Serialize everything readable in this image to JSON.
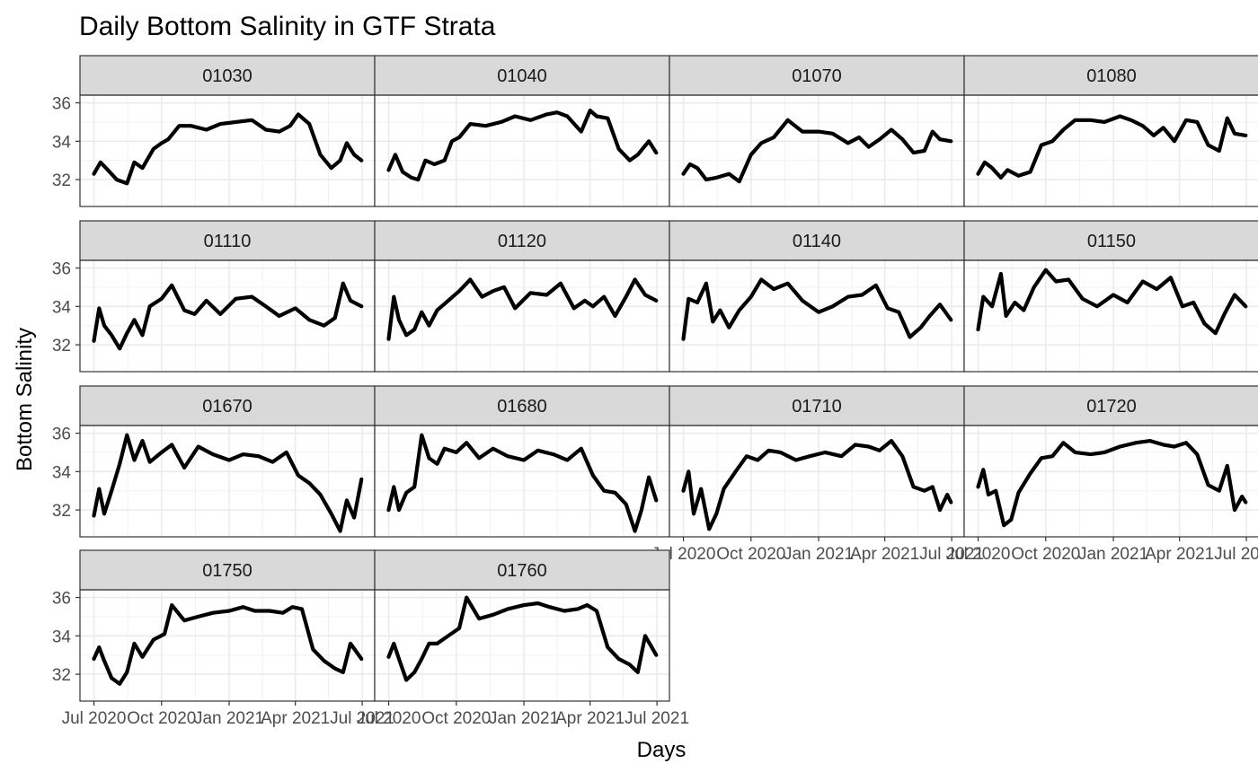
{
  "chart_data": {
    "type": "line",
    "title": "Daily Bottom Salinity in GTF Strata",
    "xlabel": "Days",
    "ylabel": "Bottom Salinity",
    "x_tick_labels": [
      "Jul 2020",
      "Oct 2020",
      "Jan 2021",
      "Apr 2021",
      "Jul 2021"
    ],
    "y_ticks": [
      32,
      34,
      36
    ],
    "ylim": [
      30.6,
      36.4
    ],
    "xlim": [
      "2020-06-12",
      "2021-07-18"
    ],
    "grid": true,
    "facet_strip_color": "#d9d9d9",
    "line_color": "#000000",
    "series": [
      {
        "name": "01030",
        "x": [
          "2020-07-01",
          "2020-07-10",
          "2020-07-20",
          "2020-08-01",
          "2020-08-15",
          "2020-08-25",
          "2020-09-05",
          "2020-09-20",
          "2020-10-01",
          "2020-10-10",
          "2020-10-25",
          "2020-11-10",
          "2020-12-01",
          "2020-12-20",
          "2021-01-10",
          "2021-02-01",
          "2021-02-20",
          "2021-03-10",
          "2021-03-25",
          "2021-04-05",
          "2021-04-20",
          "2021-05-05",
          "2021-05-20",
          "2021-06-01",
          "2021-06-10",
          "2021-06-20",
          "2021-06-30"
        ],
        "y": [
          32.3,
          32.9,
          32.5,
          32.0,
          31.8,
          32.9,
          32.6,
          33.6,
          33.9,
          34.1,
          34.8,
          34.8,
          34.6,
          34.9,
          35.0,
          35.1,
          34.6,
          34.5,
          34.8,
          35.4,
          34.9,
          33.3,
          32.6,
          33.0,
          33.9,
          33.3,
          33.0
        ]
      },
      {
        "name": "01040",
        "x": [
          "2020-07-01",
          "2020-07-10",
          "2020-07-20",
          "2020-08-01",
          "2020-08-10",
          "2020-08-20",
          "2020-09-01",
          "2020-09-15",
          "2020-09-25",
          "2020-10-05",
          "2020-10-20",
          "2020-11-10",
          "2020-12-01",
          "2020-12-20",
          "2021-01-10",
          "2021-02-01",
          "2021-02-15",
          "2021-03-01",
          "2021-03-20",
          "2021-04-01",
          "2021-04-10",
          "2021-04-25",
          "2021-05-10",
          "2021-05-25",
          "2021-06-05",
          "2021-06-20",
          "2021-06-30"
        ],
        "y": [
          32.5,
          33.3,
          32.4,
          32.1,
          32.0,
          33.0,
          32.8,
          33.0,
          34.0,
          34.2,
          34.9,
          34.8,
          35.0,
          35.3,
          35.1,
          35.4,
          35.5,
          35.3,
          34.5,
          35.6,
          35.3,
          35.2,
          33.6,
          33.0,
          33.3,
          34.0,
          33.4
        ]
      },
      {
        "name": "01070",
        "x": [
          "2020-07-01",
          "2020-07-10",
          "2020-07-20",
          "2020-08-01",
          "2020-08-15",
          "2020-09-01",
          "2020-09-15",
          "2020-10-01",
          "2020-10-15",
          "2020-11-01",
          "2020-11-20",
          "2020-12-10",
          "2021-01-01",
          "2021-01-20",
          "2021-02-10",
          "2021-02-25",
          "2021-03-10",
          "2021-03-25",
          "2021-04-10",
          "2021-04-25",
          "2021-05-10",
          "2021-05-25",
          "2021-06-05",
          "2021-06-15",
          "2021-06-30"
        ],
        "y": [
          32.3,
          32.8,
          32.6,
          32.0,
          32.1,
          32.3,
          31.9,
          33.3,
          33.9,
          34.2,
          35.1,
          34.5,
          34.5,
          34.4,
          33.9,
          34.2,
          33.7,
          34.1,
          34.6,
          34.1,
          33.4,
          33.5,
          34.5,
          34.1,
          34.0
        ]
      },
      {
        "name": "01080",
        "x": [
          "2020-07-01",
          "2020-07-10",
          "2020-07-20",
          "2020-08-01",
          "2020-08-10",
          "2020-08-25",
          "2020-09-10",
          "2020-09-25",
          "2020-10-10",
          "2020-10-25",
          "2020-11-10",
          "2020-12-01",
          "2020-12-20",
          "2021-01-10",
          "2021-01-25",
          "2021-02-10",
          "2021-02-25",
          "2021-03-10",
          "2021-03-25",
          "2021-04-10",
          "2021-04-25",
          "2021-05-10",
          "2021-05-25",
          "2021-06-05",
          "2021-06-15",
          "2021-06-30"
        ],
        "y": [
          32.3,
          32.9,
          32.6,
          32.1,
          32.5,
          32.2,
          32.4,
          33.8,
          34.0,
          34.6,
          35.1,
          35.1,
          35.0,
          35.3,
          35.1,
          34.8,
          34.3,
          34.7,
          34.0,
          35.1,
          35.0,
          33.8,
          33.5,
          35.2,
          34.4,
          34.3
        ]
      },
      {
        "name": "01110",
        "x": [
          "2020-07-01",
          "2020-07-08",
          "2020-07-15",
          "2020-07-25",
          "2020-08-05",
          "2020-08-15",
          "2020-08-25",
          "2020-09-05",
          "2020-09-15",
          "2020-10-01",
          "2020-10-15",
          "2020-11-01",
          "2020-11-15",
          "2020-12-01",
          "2020-12-20",
          "2021-01-10",
          "2021-02-01",
          "2021-02-20",
          "2021-03-10",
          "2021-04-01",
          "2021-04-20",
          "2021-05-10",
          "2021-05-25",
          "2021-06-05",
          "2021-06-15",
          "2021-06-30"
        ],
        "y": [
          32.2,
          33.9,
          33.0,
          32.5,
          31.8,
          32.6,
          33.3,
          32.5,
          34.0,
          34.4,
          35.1,
          33.8,
          33.6,
          34.3,
          33.6,
          34.4,
          34.5,
          34.0,
          33.5,
          33.9,
          33.3,
          33.0,
          33.4,
          35.2,
          34.3,
          34.0
        ]
      },
      {
        "name": "01120",
        "x": [
          "2020-07-01",
          "2020-07-08",
          "2020-07-15",
          "2020-07-25",
          "2020-08-05",
          "2020-08-15",
          "2020-08-25",
          "2020-09-05",
          "2020-09-20",
          "2020-10-05",
          "2020-10-20",
          "2020-11-05",
          "2020-11-20",
          "2020-12-05",
          "2020-12-20",
          "2021-01-10",
          "2021-02-01",
          "2021-02-20",
          "2021-03-10",
          "2021-03-25",
          "2021-04-05",
          "2021-04-20",
          "2021-05-05",
          "2021-05-20",
          "2021-06-01",
          "2021-06-15",
          "2021-06-30"
        ],
        "y": [
          32.3,
          34.5,
          33.3,
          32.5,
          32.8,
          33.7,
          33.0,
          33.8,
          34.3,
          34.8,
          35.4,
          34.5,
          34.8,
          35.0,
          33.9,
          34.7,
          34.6,
          35.2,
          33.9,
          34.3,
          34.0,
          34.5,
          33.5,
          34.5,
          35.4,
          34.6,
          34.3
        ]
      },
      {
        "name": "01140",
        "x": [
          "2020-07-01",
          "2020-07-08",
          "2020-07-20",
          "2020-08-01",
          "2020-08-10",
          "2020-08-20",
          "2020-09-01",
          "2020-09-15",
          "2020-10-01",
          "2020-10-15",
          "2020-11-01",
          "2020-11-20",
          "2020-12-10",
          "2021-01-01",
          "2021-01-20",
          "2021-02-10",
          "2021-03-01",
          "2021-03-20",
          "2021-04-05",
          "2021-04-20",
          "2021-05-05",
          "2021-05-20",
          "2021-06-01",
          "2021-06-15",
          "2021-06-30"
        ],
        "y": [
          32.3,
          34.4,
          34.2,
          35.2,
          33.2,
          33.8,
          32.9,
          33.8,
          34.5,
          35.4,
          34.9,
          35.2,
          34.3,
          33.7,
          34.0,
          34.5,
          34.6,
          35.1,
          33.9,
          33.7,
          32.4,
          32.9,
          33.5,
          34.1,
          33.3
        ]
      },
      {
        "name": "01150",
        "x": [
          "2020-07-01",
          "2020-07-08",
          "2020-07-20",
          "2020-08-01",
          "2020-08-08",
          "2020-08-20",
          "2020-09-01",
          "2020-09-15",
          "2020-10-01",
          "2020-10-15",
          "2020-11-01",
          "2020-11-20",
          "2020-12-10",
          "2021-01-01",
          "2021-01-20",
          "2021-02-10",
          "2021-03-01",
          "2021-03-20",
          "2021-04-05",
          "2021-04-20",
          "2021-05-05",
          "2021-05-20",
          "2021-06-01",
          "2021-06-15",
          "2021-06-30"
        ],
        "y": [
          32.8,
          34.5,
          34.0,
          35.7,
          33.5,
          34.2,
          33.8,
          35.0,
          35.9,
          35.3,
          35.4,
          34.4,
          34.0,
          34.6,
          34.2,
          35.3,
          34.9,
          35.5,
          34.0,
          34.2,
          33.1,
          32.6,
          33.6,
          34.6,
          34.0
        ]
      },
      {
        "name": "01670",
        "x": [
          "2020-07-01",
          "2020-07-08",
          "2020-07-15",
          "2020-07-25",
          "2020-08-05",
          "2020-08-15",
          "2020-08-25",
          "2020-09-05",
          "2020-09-15",
          "2020-10-01",
          "2020-10-15",
          "2020-11-01",
          "2020-11-20",
          "2020-12-10",
          "2021-01-01",
          "2021-01-20",
          "2021-02-10",
          "2021-03-01",
          "2021-03-20",
          "2021-04-05",
          "2021-04-20",
          "2021-05-05",
          "2021-05-20",
          "2021-06-01",
          "2021-06-10",
          "2021-06-20",
          "2021-06-30"
        ],
        "y": [
          31.7,
          33.1,
          31.8,
          33.0,
          34.4,
          35.9,
          34.6,
          35.6,
          34.5,
          35.0,
          35.4,
          34.2,
          35.3,
          34.9,
          34.6,
          34.9,
          34.8,
          34.5,
          35.0,
          33.8,
          33.4,
          32.8,
          31.8,
          30.9,
          32.5,
          31.6,
          33.6
        ]
      },
      {
        "name": "01680",
        "x": [
          "2020-07-01",
          "2020-07-08",
          "2020-07-15",
          "2020-07-25",
          "2020-08-05",
          "2020-08-15",
          "2020-08-25",
          "2020-09-05",
          "2020-09-15",
          "2020-10-01",
          "2020-10-15",
          "2020-11-01",
          "2020-11-20",
          "2020-12-10",
          "2021-01-01",
          "2021-01-20",
          "2021-02-10",
          "2021-03-01",
          "2021-03-20",
          "2021-04-05",
          "2021-04-20",
          "2021-05-05",
          "2021-05-20",
          "2021-06-01",
          "2021-06-10",
          "2021-06-20",
          "2021-06-30"
        ],
        "y": [
          32.0,
          33.2,
          32.0,
          32.9,
          33.2,
          35.9,
          34.7,
          34.4,
          35.2,
          35.0,
          35.5,
          34.7,
          35.2,
          34.8,
          34.6,
          35.1,
          34.9,
          34.6,
          35.2,
          33.8,
          33.0,
          32.9,
          32.3,
          30.9,
          32.0,
          33.7,
          32.5
        ]
      },
      {
        "name": "01710",
        "x": [
          "2020-07-01",
          "2020-07-08",
          "2020-07-15",
          "2020-07-25",
          "2020-08-05",
          "2020-08-15",
          "2020-08-25",
          "2020-09-10",
          "2020-09-25",
          "2020-10-10",
          "2020-10-25",
          "2020-11-10",
          "2020-12-01",
          "2020-12-20",
          "2021-01-10",
          "2021-02-01",
          "2021-02-20",
          "2021-03-10",
          "2021-03-25",
          "2021-04-10",
          "2021-04-25",
          "2021-05-10",
          "2021-05-25",
          "2021-06-05",
          "2021-06-15",
          "2021-06-25",
          "2021-06-30"
        ],
        "y": [
          33.0,
          34.0,
          31.8,
          33.1,
          31.0,
          31.8,
          33.1,
          34.0,
          34.8,
          34.6,
          35.1,
          35.0,
          34.6,
          34.8,
          35.0,
          34.8,
          35.4,
          35.3,
          35.1,
          35.6,
          34.8,
          33.2,
          33.0,
          33.2,
          32.0,
          32.8,
          32.4
        ]
      },
      {
        "name": "01720",
        "x": [
          "2020-07-01",
          "2020-07-08",
          "2020-07-15",
          "2020-07-25",
          "2020-08-05",
          "2020-08-15",
          "2020-08-25",
          "2020-09-10",
          "2020-09-25",
          "2020-10-10",
          "2020-10-25",
          "2020-11-10",
          "2020-12-01",
          "2020-12-20",
          "2021-01-10",
          "2021-02-01",
          "2021-02-20",
          "2021-03-10",
          "2021-03-25",
          "2021-04-10",
          "2021-04-25",
          "2021-05-10",
          "2021-05-25",
          "2021-06-05",
          "2021-06-15",
          "2021-06-25",
          "2021-06-30"
        ],
        "y": [
          33.2,
          34.1,
          32.8,
          33.0,
          31.2,
          31.5,
          32.9,
          33.9,
          34.7,
          34.8,
          35.5,
          35.0,
          34.9,
          35.0,
          35.3,
          35.5,
          35.6,
          35.4,
          35.3,
          35.5,
          34.9,
          33.3,
          33.0,
          34.3,
          32.0,
          32.7,
          32.4
        ]
      },
      {
        "name": "01750",
        "x": [
          "2020-07-01",
          "2020-07-08",
          "2020-07-15",
          "2020-07-25",
          "2020-08-05",
          "2020-08-15",
          "2020-08-25",
          "2020-09-05",
          "2020-09-20",
          "2020-10-05",
          "2020-10-15",
          "2020-11-01",
          "2020-11-20",
          "2020-12-10",
          "2021-01-01",
          "2021-01-20",
          "2021-02-05",
          "2021-02-25",
          "2021-03-15",
          "2021-03-28",
          "2021-04-10",
          "2021-04-25",
          "2021-05-10",
          "2021-05-25",
          "2021-06-05",
          "2021-06-15",
          "2021-06-30"
        ],
        "y": [
          32.8,
          33.4,
          32.7,
          31.8,
          31.5,
          32.1,
          33.6,
          32.9,
          33.8,
          34.1,
          35.6,
          34.8,
          35.0,
          35.2,
          35.3,
          35.5,
          35.3,
          35.3,
          35.2,
          35.5,
          35.4,
          33.3,
          32.7,
          32.3,
          32.1,
          33.6,
          32.8
        ]
      },
      {
        "name": "01760",
        "x": [
          "2020-07-01",
          "2020-07-08",
          "2020-07-15",
          "2020-07-25",
          "2020-08-05",
          "2020-08-15",
          "2020-08-25",
          "2020-09-05",
          "2020-09-20",
          "2020-10-05",
          "2020-10-15",
          "2020-11-01",
          "2020-11-20",
          "2020-12-10",
          "2021-01-01",
          "2021-01-20",
          "2021-02-05",
          "2021-02-25",
          "2021-03-15",
          "2021-03-28",
          "2021-04-10",
          "2021-04-25",
          "2021-05-10",
          "2021-05-25",
          "2021-06-05",
          "2021-06-15",
          "2021-06-30"
        ],
        "y": [
          32.9,
          33.6,
          32.8,
          31.7,
          32.1,
          32.8,
          33.6,
          33.6,
          34.0,
          34.4,
          36.0,
          34.9,
          35.1,
          35.4,
          35.6,
          35.7,
          35.5,
          35.3,
          35.4,
          35.6,
          35.3,
          33.4,
          32.8,
          32.5,
          32.1,
          34.0,
          33.0
        ]
      }
    ]
  }
}
